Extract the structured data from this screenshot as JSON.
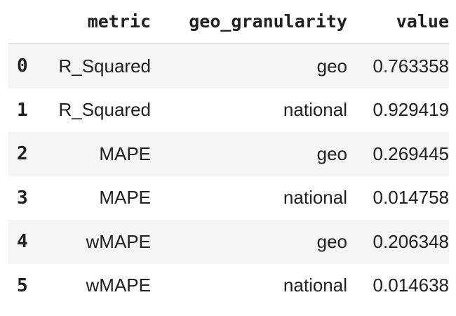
{
  "columns": [
    "",
    "metric",
    "geo_granularity",
    "value"
  ],
  "rows": [
    {
      "index": "0",
      "metric": "R_Squared",
      "geo_granularity": "geo",
      "value": "0.763358"
    },
    {
      "index": "1",
      "metric": "R_Squared",
      "geo_granularity": "national",
      "value": "0.929419"
    },
    {
      "index": "2",
      "metric": "MAPE",
      "geo_granularity": "geo",
      "value": "0.269445"
    },
    {
      "index": "3",
      "metric": "MAPE",
      "geo_granularity": "national",
      "value": "0.014758"
    },
    {
      "index": "4",
      "metric": "wMAPE",
      "geo_granularity": "geo",
      "value": "0.206348"
    },
    {
      "index": "5",
      "metric": "wMAPE",
      "geo_granularity": "national",
      "value": "0.014638"
    }
  ]
}
